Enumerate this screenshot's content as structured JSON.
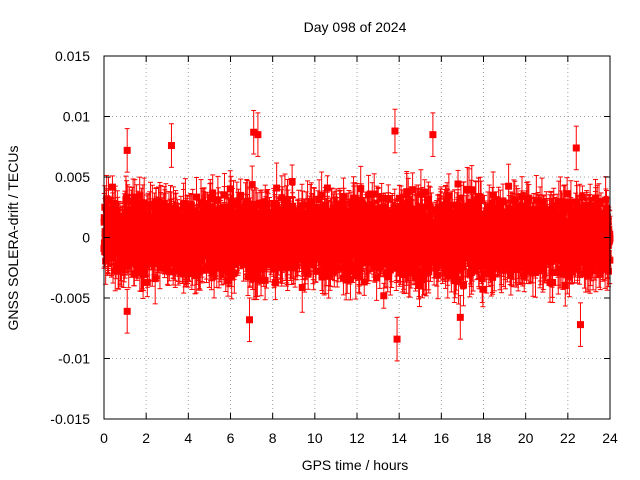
{
  "chart_data": {
    "type": "scatter",
    "title": "Day 098 of 2024",
    "xlabel": "GPS time / hours",
    "ylabel": "GNSS SOLERA-drift / TECUs",
    "xlim": [
      0,
      24
    ],
    "ylim": [
      -0.015,
      0.015
    ],
    "x_ticks": [
      "0",
      "2",
      "4",
      "6",
      "8",
      "10",
      "12",
      "14",
      "16",
      "18",
      "20",
      "22",
      "24"
    ],
    "y_ticks": [
      "0.015",
      "0.01",
      "0.005",
      "0",
      "-0.005",
      "-0.01",
      "-0.015"
    ],
    "grid": true,
    "legend": "none",
    "color": "#ff0000",
    "series": [
      {
        "marker": "filled-square",
        "error_bars": true,
        "x_range": [
          0,
          24
        ],
        "typical_spread": 0.005,
        "typical_error": 0.0015,
        "points_per_hour": 150,
        "notable_points": [
          {
            "x": 1.1,
            "y": 0.0072
          },
          {
            "x": 3.2,
            "y": 0.0076
          },
          {
            "x": 7.1,
            "y": 0.0087
          },
          {
            "x": 7.3,
            "y": 0.0085
          },
          {
            "x": 13.8,
            "y": 0.0088
          },
          {
            "x": 15.6,
            "y": 0.0085
          },
          {
            "x": 22.4,
            "y": 0.0074
          },
          {
            "x": 13.9,
            "y": -0.0084
          },
          {
            "x": 22.6,
            "y": -0.0072
          },
          {
            "x": 1.1,
            "y": -0.0061
          },
          {
            "x": 6.9,
            "y": -0.0068
          },
          {
            "x": 16.9,
            "y": -0.0066
          }
        ]
      }
    ]
  }
}
